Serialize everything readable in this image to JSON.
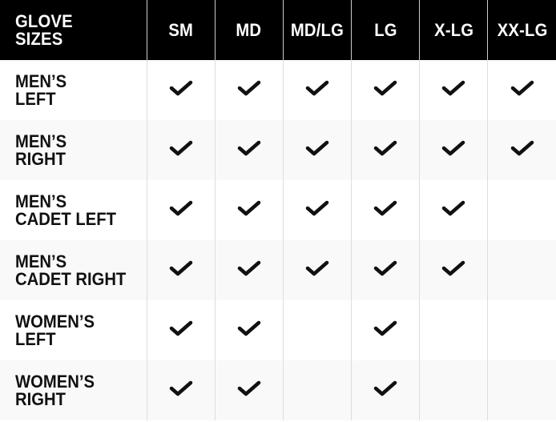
{
  "header": {
    "title": "GLOVE\nSIZES",
    "sizes": [
      "SM",
      "MD",
      "MD/LG",
      "LG",
      "X-LG",
      "XX-LG"
    ]
  },
  "rows": [
    {
      "label": "MEN’S\nLEFT",
      "available": [
        true,
        true,
        true,
        true,
        true,
        true
      ]
    },
    {
      "label": "MEN’S\nRIGHT",
      "available": [
        true,
        true,
        true,
        true,
        true,
        true
      ]
    },
    {
      "label": "MEN’S\nCADET LEFT",
      "available": [
        true,
        true,
        true,
        true,
        true,
        false
      ]
    },
    {
      "label": "MEN’S\nCADET RIGHT",
      "available": [
        true,
        true,
        true,
        true,
        true,
        false
      ]
    },
    {
      "label": "WOMEN’S\nLEFT",
      "available": [
        true,
        true,
        false,
        true,
        false,
        false
      ]
    },
    {
      "label": "WOMEN’S\nRIGHT",
      "available": [
        true,
        true,
        false,
        true,
        false,
        false
      ]
    }
  ],
  "icons": {
    "available": "checkmark-icon"
  },
  "colors": {
    "header_bg": "#000000",
    "header_text": "#ffffff",
    "alt_row": "#f9f9f9",
    "check": "#111111"
  }
}
